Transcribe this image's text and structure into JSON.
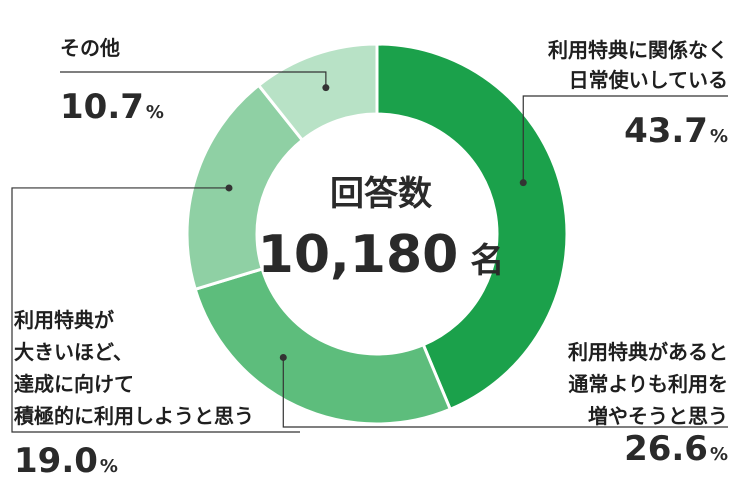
{
  "chart_data": {
    "type": "pie",
    "variant": "donut",
    "center": {
      "title": "回答数",
      "value": "10,180",
      "unit": "名"
    },
    "slices": [
      {
        "label_lines": [
          "利用特典に関係なく",
          "日常使いしている"
        ],
        "value": 43.7,
        "value_text": "43.7",
        "unit": "%",
        "color": "#1ba14b"
      },
      {
        "label_lines": [
          "利用特典があると",
          "通常よりも利用を",
          "増やそうと思う"
        ],
        "value": 26.6,
        "value_text": "26.6",
        "unit": "%",
        "color": "#5dbd7c"
      },
      {
        "label_lines": [
          "利用特典が",
          "大きいほど、",
          "達成に向けて",
          "積極的に利用しようと思う"
        ],
        "value": 19.0,
        "value_text": "19.0",
        "unit": "%",
        "color": "#8fd0a4"
      },
      {
        "label_lines": [
          "その他"
        ],
        "value": 10.7,
        "value_text": "10.7",
        "unit": "%",
        "color": "#b8e2c6"
      }
    ]
  }
}
